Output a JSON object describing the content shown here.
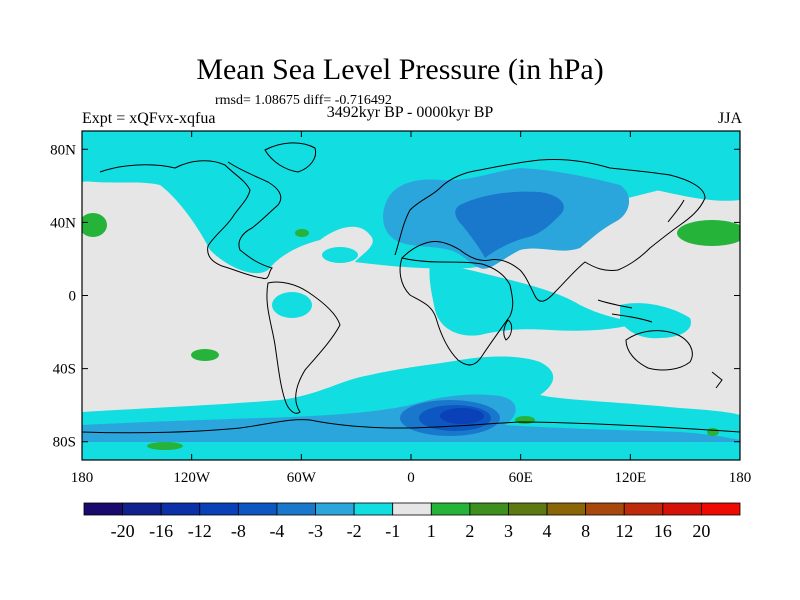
{
  "title": "Mean Sea Level Pressure (in hPa)",
  "stats": "rmsd= 1.08675 diff= -0.716492",
  "experiment": "Expt = xQFvx-xqfua",
  "period": "3492kyr BP - 0000kyr BP",
  "season": "JJA",
  "lat_ticks": [
    {
      "label": "80N",
      "value": 80
    },
    {
      "label": "40N",
      "value": 40
    },
    {
      "label": "0",
      "value": 0
    },
    {
      "label": "40S",
      "value": -40
    },
    {
      "label": "80S",
      "value": -80
    }
  ],
  "lon_ticks": [
    {
      "label": "180",
      "value": -180
    },
    {
      "label": "120W",
      "value": -120
    },
    {
      "label": "60W",
      "value": -60
    },
    {
      "label": "0",
      "value": 0
    },
    {
      "label": "60E",
      "value": 60
    },
    {
      "label": "120E",
      "value": 120
    },
    {
      "label": "180",
      "value": 180
    }
  ],
  "colorbar": {
    "labels": [
      "-20",
      "-16",
      "-12",
      "-8",
      "-4",
      "-3",
      "-2",
      "-1",
      "1",
      "2",
      "3",
      "4",
      "8",
      "12",
      "16",
      "20"
    ],
    "colors": [
      "#1a0a6e",
      "#10208f",
      "#0b30a8",
      "#0a40b8",
      "#0d57c2",
      "#1a78cc",
      "#2ba6dc",
      "#12dde0",
      "#e6e6e6",
      "#26b33a",
      "#3d8f1e",
      "#5c7a10",
      "#8a6608",
      "#a9480c",
      "#bf2a0a",
      "#d41208",
      "#ee0a00"
    ]
  },
  "legend_colors": {
    "neutral": "#e6e6e6",
    "cyan": "#12dde0",
    "lightblue": "#2ba6dc",
    "medblue": "#1a78cc",
    "darkblue": "#0d57c2",
    "deepblue": "#0a40b8",
    "green": "#26b33a"
  }
}
